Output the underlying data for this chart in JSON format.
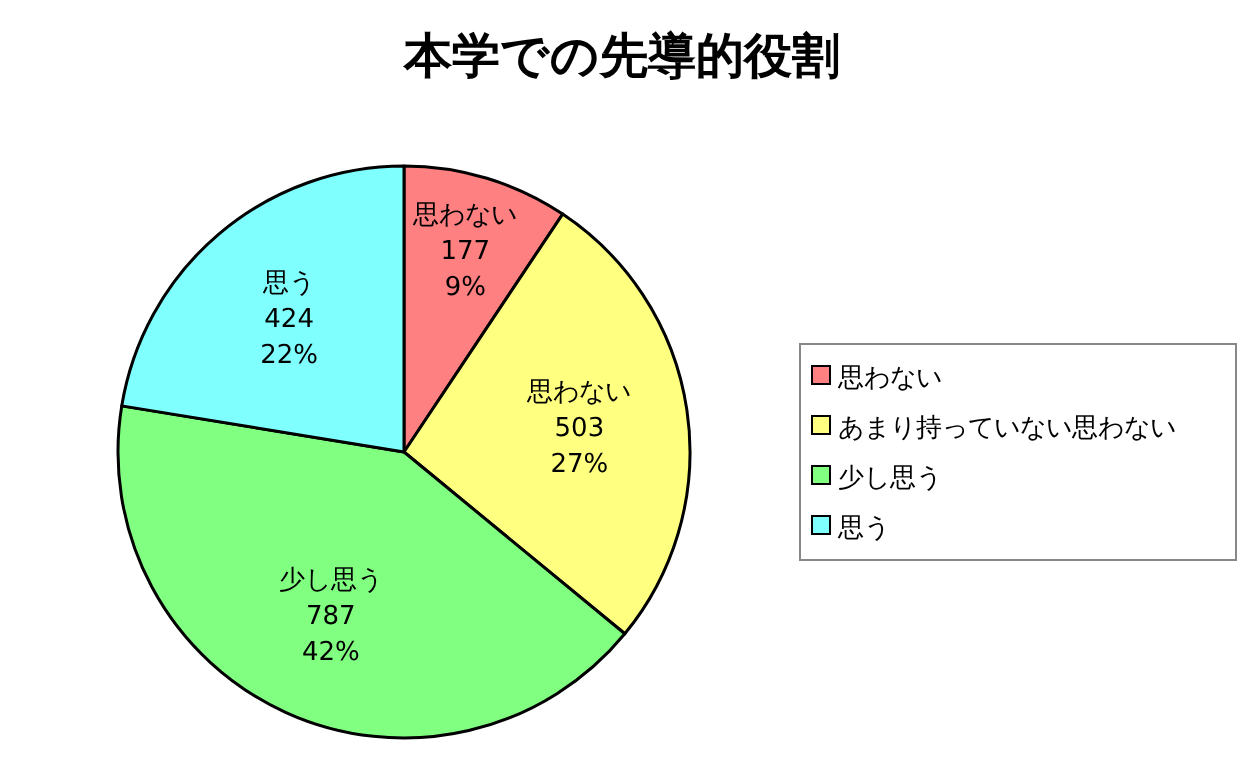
{
  "chart_data": {
    "type": "pie",
    "title": "本学での先導的役割",
    "categories": [
      "思わない",
      "あまり持っていない思わない",
      "少し思う",
      "思う"
    ],
    "values": [
      177,
      503,
      787,
      424
    ],
    "colors": [
      "#ff8080",
      "#ffff80",
      "#80ff80",
      "#80ffff"
    ],
    "value_labels": [
      "思わない\n177\n9%",
      "思わない\n503\n27%",
      "少し思う\n787\n42%",
      "思う\n424\n22%"
    ],
    "legend": "right"
  }
}
